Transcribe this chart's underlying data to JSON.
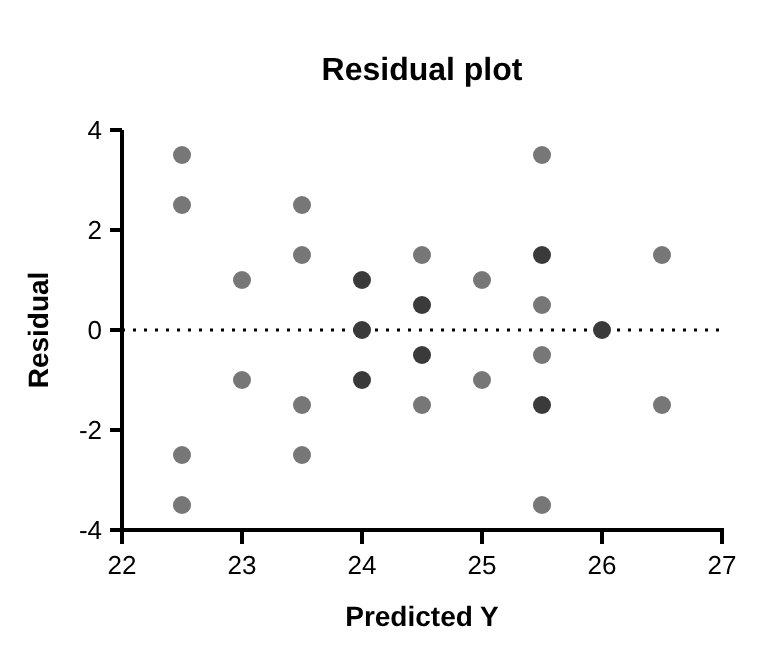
{
  "chart_data": {
    "type": "scatter",
    "title": "Residual plot",
    "xlabel": "Predicted Y",
    "ylabel": "Residual",
    "x": [
      22.5,
      22.5,
      22.5,
      22.5,
      23,
      23,
      23.5,
      23.5,
      23.5,
      23.5,
      24,
      24,
      24,
      24.5,
      24.5,
      24.5,
      24.5,
      25,
      25,
      25.5,
      25.5,
      25.5,
      25.5,
      25.5,
      25.5,
      26,
      26.5,
      26.5
    ],
    "values": [
      3.5,
      2.5,
      -2.5,
      -3.5,
      1,
      -1,
      2.5,
      1.5,
      -1.5,
      -2.5,
      1,
      0,
      -1,
      1.5,
      0.5,
      -0.5,
      -1.5,
      1,
      -1,
      3.5,
      1.5,
      0.5,
      -0.5,
      -1.5,
      -3.5,
      0,
      1.5,
      -1.5
    ],
    "colors": [
      "#777777",
      "#777777",
      "#777777",
      "#777777",
      "#777777",
      "#777777",
      "#777777",
      "#777777",
      "#777777",
      "#777777",
      "#3a3a3a",
      "#3a3a3a",
      "#3a3a3a",
      "#777777",
      "#3a3a3a",
      "#3a3a3a",
      "#777777",
      "#777777",
      "#777777",
      "#777777",
      "#3a3a3a",
      "#777777",
      "#777777",
      "#3a3a3a",
      "#777777",
      "#3a3a3a",
      "#777777",
      "#777777"
    ],
    "marker": "circle",
    "xlim": [
      22,
      27
    ],
    "xticks": [
      22,
      23,
      24,
      25,
      26,
      27
    ],
    "ylim": [
      -4,
      4
    ],
    "yticks": [
      -4,
      -2,
      0,
      2,
      4
    ],
    "ref_lines": [
      {
        "axis": "y",
        "value": 0,
        "line_style": "dotted",
        "color": "#000000"
      }
    ],
    "grid": false
  }
}
